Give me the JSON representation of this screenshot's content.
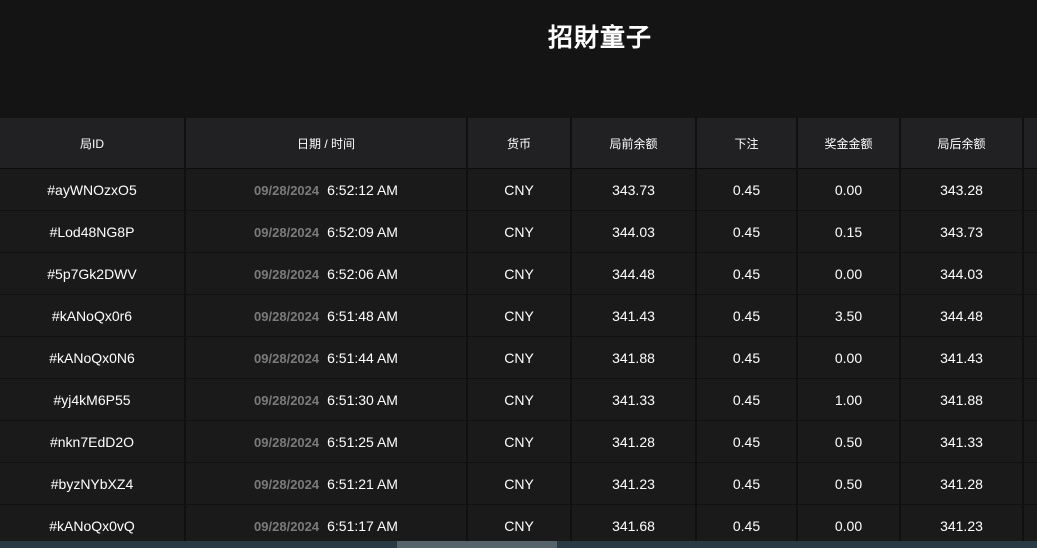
{
  "title": "招財童子",
  "columns": [
    "局ID",
    "日期 / 时间",
    "货币",
    "局前余额",
    "下注",
    "奖金金额",
    "局后余额",
    ""
  ],
  "rows": [
    {
      "id": "#ayWNOzxO5",
      "date": "09/28/2024",
      "time": "6:52:12 AM",
      "currency": "CNY",
      "before": "343.73",
      "bet": "0.45",
      "win": "0.00",
      "after": "343.28"
    },
    {
      "id": "#Lod48NG8P",
      "date": "09/28/2024",
      "time": "6:52:09 AM",
      "currency": "CNY",
      "before": "344.03",
      "bet": "0.45",
      "win": "0.15",
      "after": "343.73"
    },
    {
      "id": "#5p7Gk2DWV",
      "date": "09/28/2024",
      "time": "6:52:06 AM",
      "currency": "CNY",
      "before": "344.48",
      "bet": "0.45",
      "win": "0.00",
      "after": "344.03"
    },
    {
      "id": "#kANoQx0r6",
      "date": "09/28/2024",
      "time": "6:51:48 AM",
      "currency": "CNY",
      "before": "341.43",
      "bet": "0.45",
      "win": "3.50",
      "after": "344.48"
    },
    {
      "id": "#kANoQx0N6",
      "date": "09/28/2024",
      "time": "6:51:44 AM",
      "currency": "CNY",
      "before": "341.88",
      "bet": "0.45",
      "win": "0.00",
      "after": "341.43"
    },
    {
      "id": "#yj4kM6P55",
      "date": "09/28/2024",
      "time": "6:51:30 AM",
      "currency": "CNY",
      "before": "341.33",
      "bet": "0.45",
      "win": "1.00",
      "after": "341.88"
    },
    {
      "id": "#nkn7EdD2O",
      "date": "09/28/2024",
      "time": "6:51:25 AM",
      "currency": "CNY",
      "before": "341.28",
      "bet": "0.45",
      "win": "0.50",
      "after": "341.33"
    },
    {
      "id": "#byzNYbXZ4",
      "date": "09/28/2024",
      "time": "6:51:21 AM",
      "currency": "CNY",
      "before": "341.23",
      "bet": "0.45",
      "win": "0.50",
      "after": "341.28"
    },
    {
      "id": "#kANoQx0vQ",
      "date": "09/28/2024",
      "time": "6:51:17 AM",
      "currency": "CNY",
      "before": "341.68",
      "bet": "0.45",
      "win": "0.00",
      "after": "341.23"
    }
  ]
}
